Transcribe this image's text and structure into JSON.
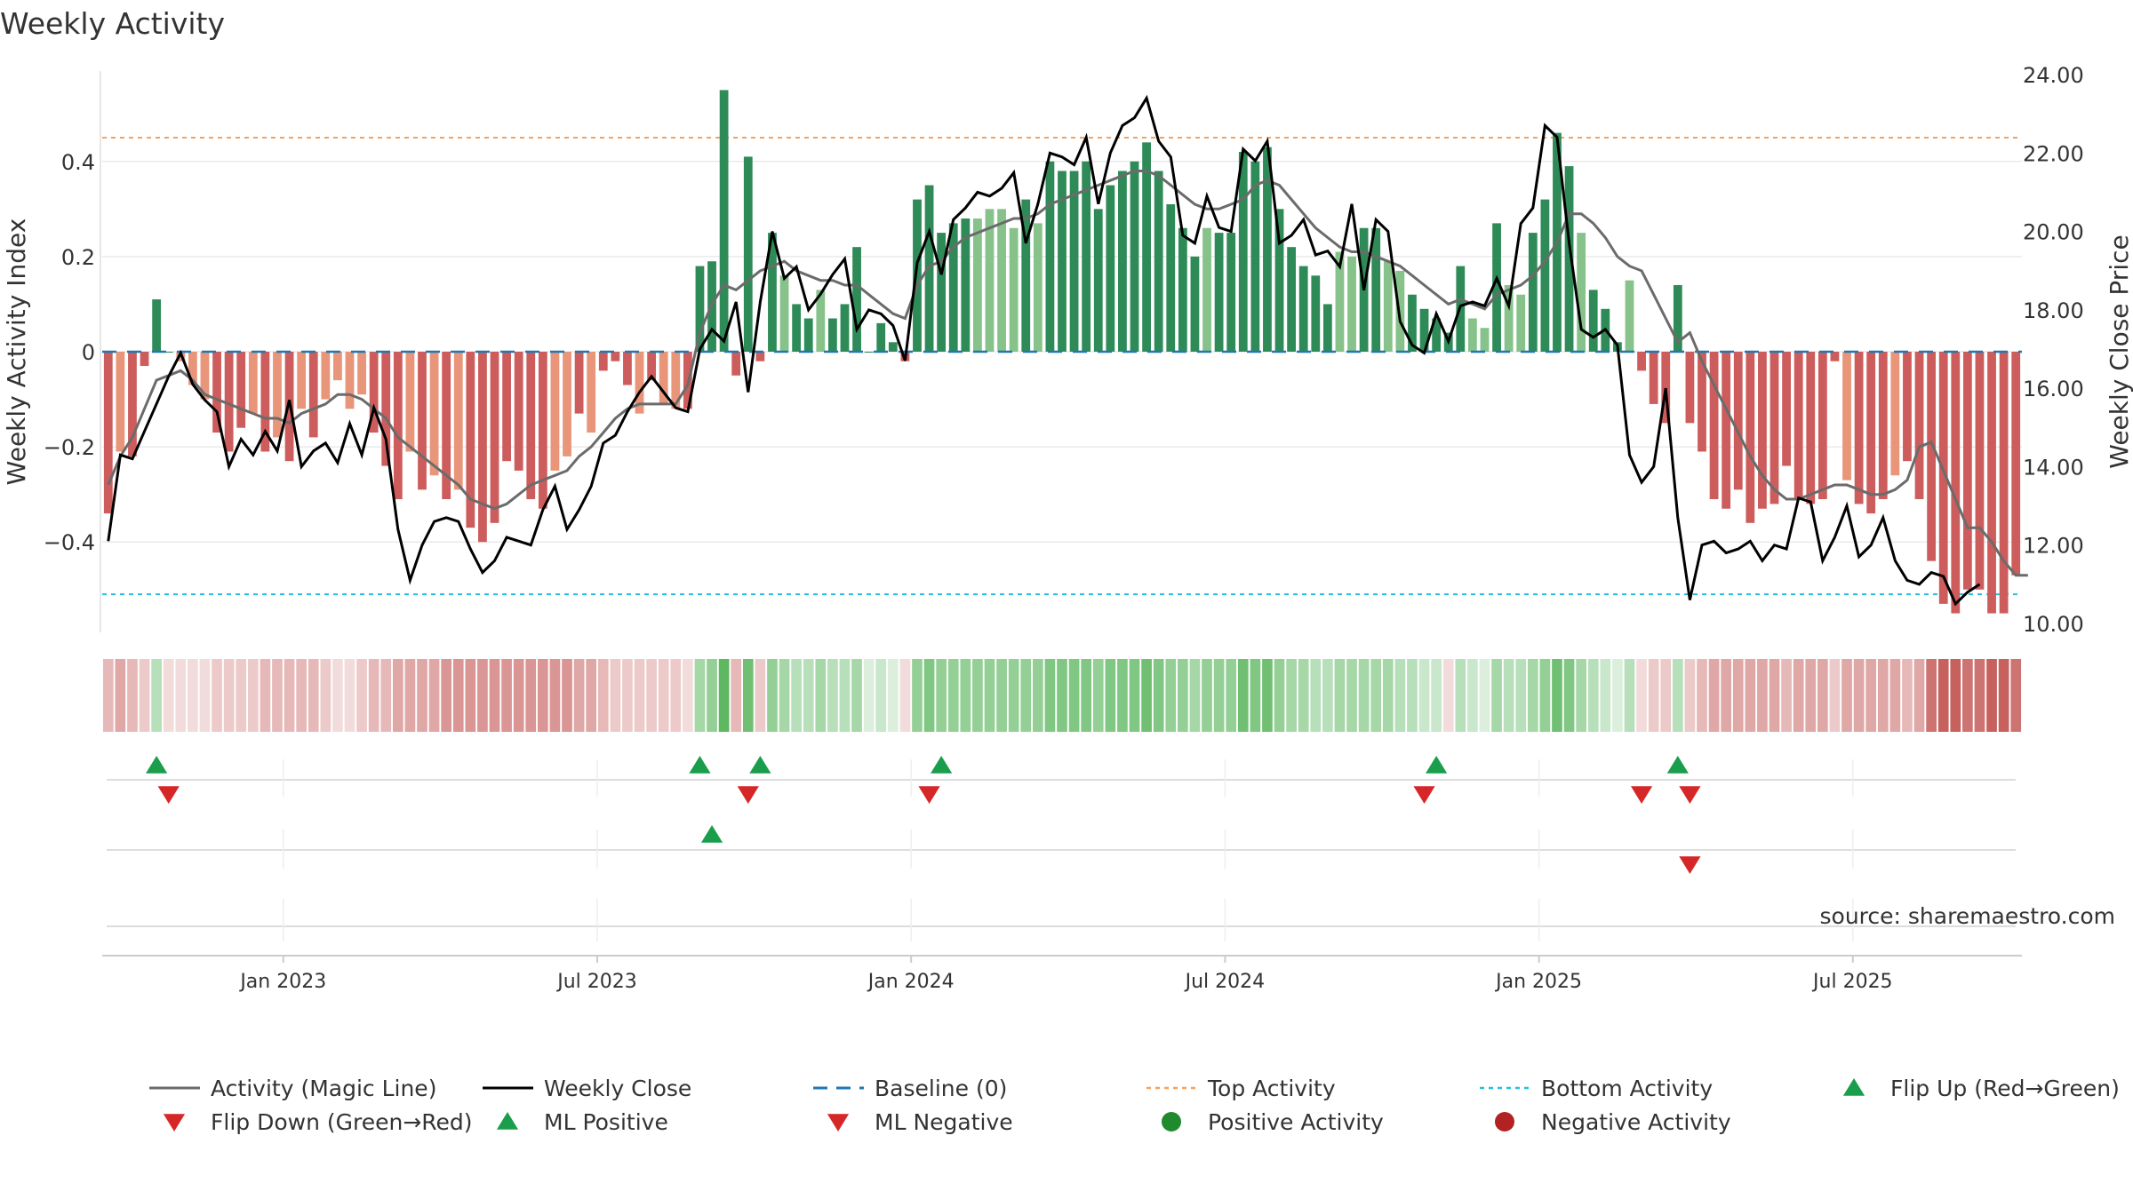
{
  "chart_data": {
    "type": "bar",
    "title": "Weekly Activity",
    "ylabel": "Weekly Activity Index",
    "y2label": "Weekly Close Price",
    "source": "source: sharemaestro.com",
    "ylim": [
      -0.59,
      0.59
    ],
    "y2lim": [
      10.0,
      24.0
    ],
    "yticks": [
      {
        "v": 0.4,
        "label": "0.4"
      },
      {
        "v": 0.2,
        "label": "0.2"
      },
      {
        "v": 0,
        "label": "0"
      },
      {
        "v": -0.2,
        "label": "−0.2"
      },
      {
        "v": -0.4,
        "label": "−0.4"
      }
    ],
    "y2ticks": [
      {
        "v": 24,
        "label": "24.00"
      },
      {
        "v": 22,
        "label": "22.00"
      },
      {
        "v": 20,
        "label": "20.00"
      },
      {
        "v": 18,
        "label": "18.00"
      },
      {
        "v": 16,
        "label": "16.00"
      },
      {
        "v": 14,
        "label": "14.00"
      },
      {
        "v": 12,
        "label": "12.00"
      },
      {
        "v": 10,
        "label": "10.00"
      }
    ],
    "xticks": [
      {
        "week": 14.5,
        "label": "Jan 2023"
      },
      {
        "week": 40.5,
        "label": "Jul 2023"
      },
      {
        "week": 66.5,
        "label": "Jan 2024"
      },
      {
        "week": 92.5,
        "label": "Jul 2024"
      },
      {
        "week": 118.5,
        "label": "Jan 2025"
      },
      {
        "week": 144.5,
        "label": "Jul 2025"
      }
    ],
    "top_activity": 0.45,
    "bottom_activity": -0.51,
    "activity": [
      -0.34,
      -0.21,
      -0.22,
      -0.03,
      0.11,
      0.0,
      -0.02,
      -0.07,
      -0.1,
      -0.17,
      -0.21,
      -0.16,
      -0.13,
      -0.21,
      -0.18,
      -0.23,
      -0.12,
      -0.18,
      -0.1,
      -0.06,
      -0.12,
      -0.09,
      -0.17,
      -0.24,
      -0.31,
      -0.21,
      -0.29,
      -0.26,
      -0.31,
      -0.29,
      -0.37,
      -0.4,
      -0.36,
      -0.23,
      -0.25,
      -0.31,
      -0.33,
      -0.25,
      -0.22,
      -0.13,
      -0.17,
      -0.04,
      -0.02,
      -0.07,
      -0.13,
      -0.06,
      -0.11,
      -0.12,
      -0.12,
      0.18,
      0.19,
      0.55,
      -0.05,
      0.41,
      -0.02,
      0.25,
      0.16,
      0.1,
      0.07,
      0.13,
      0.07,
      0.1,
      0.22,
      0.0,
      0.06,
      0.02,
      -0.02,
      0.32,
      0.35,
      0.25,
      0.27,
      0.28,
      0.28,
      0.3,
      0.3,
      0.26,
      0.32,
      0.27,
      0.4,
      0.38,
      0.38,
      0.4,
      0.3,
      0.35,
      0.38,
      0.4,
      0.44,
      0.38,
      0.31,
      0.26,
      0.2,
      0.26,
      0.25,
      0.25,
      0.42,
      0.4,
      0.43,
      0.3,
      0.22,
      0.18,
      0.16,
      0.1,
      0.21,
      0.2,
      0.26,
      0.26,
      0.19,
      0.17,
      0.12,
      0.09,
      0.07,
      0.04,
      0.18,
      0.07,
      0.05,
      0.27,
      0.14,
      0.12,
      0.25,
      0.32,
      0.46,
      0.39,
      0.25,
      0.13,
      0.09,
      0.02,
      0.15,
      -0.04,
      -0.11,
      -0.15,
      0.14,
      -0.15,
      -0.21,
      -0.31,
      -0.33,
      -0.29,
      -0.36,
      -0.33,
      -0.32,
      -0.24,
      -0.31,
      -0.32,
      -0.31,
      -0.02,
      -0.27,
      -0.32,
      -0.34,
      -0.31,
      -0.26,
      -0.23,
      -0.31,
      -0.44,
      -0.53,
      -0.55,
      -0.5,
      -0.5,
      -0.55,
      -0.55,
      -0.47
    ],
    "magic_line": [
      -0.28,
      -0.22,
      -0.18,
      -0.12,
      -0.06,
      -0.05,
      -0.04,
      -0.06,
      -0.09,
      -0.1,
      -0.11,
      -0.12,
      -0.13,
      -0.14,
      -0.14,
      -0.15,
      -0.13,
      -0.12,
      -0.11,
      -0.09,
      -0.09,
      -0.1,
      -0.12,
      -0.14,
      -0.18,
      -0.2,
      -0.22,
      -0.24,
      -0.26,
      -0.28,
      -0.31,
      -0.32,
      -0.33,
      -0.32,
      -0.3,
      -0.28,
      -0.27,
      -0.26,
      -0.25,
      -0.22,
      -0.2,
      -0.17,
      -0.14,
      -0.12,
      -0.11,
      -0.11,
      -0.11,
      -0.11,
      -0.07,
      0.04,
      0.1,
      0.14,
      0.13,
      0.15,
      0.17,
      0.18,
      0.19,
      0.17,
      0.16,
      0.15,
      0.15,
      0.14,
      0.14,
      0.12,
      0.1,
      0.08,
      0.07,
      0.14,
      0.18,
      0.19,
      0.22,
      0.24,
      0.25,
      0.26,
      0.27,
      0.28,
      0.28,
      0.29,
      0.31,
      0.32,
      0.33,
      0.34,
      0.35,
      0.36,
      0.37,
      0.38,
      0.38,
      0.37,
      0.35,
      0.33,
      0.31,
      0.3,
      0.3,
      0.31,
      0.32,
      0.35,
      0.36,
      0.35,
      0.32,
      0.29,
      0.26,
      0.24,
      0.22,
      0.21,
      0.21,
      0.2,
      0.19,
      0.18,
      0.16,
      0.14,
      0.12,
      0.1,
      0.11,
      0.1,
      0.09,
      0.12,
      0.13,
      0.14,
      0.16,
      0.19,
      0.23,
      0.29,
      0.29,
      0.27,
      0.24,
      0.2,
      0.18,
      0.17,
      0.12,
      0.07,
      0.02,
      0.04,
      -0.02,
      -0.07,
      -0.12,
      -0.17,
      -0.22,
      -0.26,
      -0.29,
      -0.31,
      -0.31,
      -0.3,
      -0.29,
      -0.28,
      -0.28,
      -0.29,
      -0.3,
      -0.3,
      -0.29,
      -0.27,
      -0.2,
      -0.19,
      -0.25,
      -0.31,
      -0.37,
      -0.37,
      -0.4,
      -0.44,
      -0.47,
      -0.47
    ],
    "weekly_close": [
      12.1,
      14.3,
      14.2,
      14.9,
      15.6,
      16.3,
      16.9,
      16.1,
      15.7,
      15.4,
      14.0,
      14.7,
      14.3,
      14.9,
      14.4,
      15.7,
      14.0,
      14.4,
      14.6,
      14.1,
      15.1,
      14.3,
      15.5,
      14.7,
      12.4,
      11.1,
      12.0,
      12.6,
      12.7,
      12.6,
      11.9,
      11.3,
      11.6,
      12.2,
      12.1,
      12.0,
      12.9,
      13.5,
      12.4,
      12.9,
      13.5,
      14.6,
      14.8,
      15.4,
      15.9,
      16.3,
      15.9,
      15.5,
      15.4,
      17.0,
      17.5,
      17.2,
      18.2,
      15.9,
      18.2,
      20.0,
      18.8,
      19.1,
      18.0,
      18.4,
      18.9,
      19.3,
      17.5,
      18.0,
      17.9,
      17.6,
      16.7,
      19.2,
      20.0,
      18.9,
      20.3,
      20.6,
      21.0,
      20.9,
      21.1,
      21.5,
      19.7,
      20.7,
      22.0,
      21.9,
      21.7,
      22.4,
      20.7,
      22.0,
      22.7,
      22.9,
      23.4,
      22.3,
      21.9,
      19.9,
      19.7,
      20.9,
      20.1,
      20.0,
      22.1,
      21.8,
      22.3,
      19.7,
      19.9,
      20.3,
      19.4,
      19.5,
      19.1,
      20.7,
      18.5,
      20.3,
      20.0,
      17.7,
      17.1,
      16.9,
      17.9,
      17.2,
      18.1,
      18.2,
      18.1,
      18.8,
      18.1,
      20.2,
      20.6,
      22.7,
      22.4,
      19.7,
      17.5,
      17.3,
      17.5,
      17.1,
      14.3,
      13.6,
      14.0,
      16.0,
      12.7,
      10.6,
      12.0,
      12.1,
      11.8,
      11.9,
      12.1,
      11.6,
      12.0,
      11.9,
      13.2,
      13.1,
      11.6,
      12.2,
      13.0,
      11.7,
      12.0,
      12.7,
      11.6,
      11.1,
      11.0,
      11.3,
      11.2,
      10.5,
      10.8,
      11.0
    ],
    "strip": [
      [
        0.4,
        "R"
      ],
      [
        0.5,
        "R"
      ],
      [
        0.4,
        "R"
      ],
      [
        0.3,
        "R"
      ],
      [
        0.4,
        "G"
      ],
      [
        0.2,
        "R"
      ],
      [
        0.2,
        "R"
      ],
      [
        0.2,
        "R"
      ],
      [
        0.2,
        "R"
      ],
      [
        0.3,
        "R"
      ],
      [
        0.3,
        "R"
      ],
      [
        0.3,
        "R"
      ],
      [
        0.3,
        "R"
      ],
      [
        0.4,
        "R"
      ],
      [
        0.4,
        "R"
      ],
      [
        0.4,
        "R"
      ],
      [
        0.4,
        "R"
      ],
      [
        0.4,
        "R"
      ],
      [
        0.3,
        "R"
      ],
      [
        0.2,
        "R"
      ],
      [
        0.2,
        "R"
      ],
      [
        0.3,
        "R"
      ],
      [
        0.4,
        "R"
      ],
      [
        0.4,
        "R"
      ],
      [
        0.5,
        "R"
      ],
      [
        0.5,
        "R"
      ],
      [
        0.5,
        "R"
      ],
      [
        0.5,
        "R"
      ],
      [
        0.6,
        "R"
      ],
      [
        0.6,
        "R"
      ],
      [
        0.6,
        "R"
      ],
      [
        0.6,
        "R"
      ],
      [
        0.6,
        "R"
      ],
      [
        0.6,
        "R"
      ],
      [
        0.6,
        "R"
      ],
      [
        0.6,
        "R"
      ],
      [
        0.6,
        "R"
      ],
      [
        0.6,
        "R"
      ],
      [
        0.6,
        "R"
      ],
      [
        0.5,
        "R"
      ],
      [
        0.5,
        "R"
      ],
      [
        0.4,
        "R"
      ],
      [
        0.3,
        "R"
      ],
      [
        0.3,
        "R"
      ],
      [
        0.3,
        "R"
      ],
      [
        0.3,
        "R"
      ],
      [
        0.3,
        "R"
      ],
      [
        0.3,
        "R"
      ],
      [
        0.2,
        "R"
      ],
      [
        0.5,
        "G"
      ],
      [
        0.6,
        "G"
      ],
      [
        0.9,
        "G"
      ],
      [
        0.4,
        "R"
      ],
      [
        0.8,
        "G"
      ],
      [
        0.3,
        "R"
      ],
      [
        0.6,
        "G"
      ],
      [
        0.5,
        "G"
      ],
      [
        0.4,
        "G"
      ],
      [
        0.4,
        "G"
      ],
      [
        0.5,
        "G"
      ],
      [
        0.4,
        "G"
      ],
      [
        0.4,
        "G"
      ],
      [
        0.5,
        "G"
      ],
      [
        0.2,
        "G"
      ],
      [
        0.3,
        "G"
      ],
      [
        0.2,
        "G"
      ],
      [
        0.2,
        "R"
      ],
      [
        0.6,
        "G"
      ],
      [
        0.7,
        "G"
      ],
      [
        0.6,
        "G"
      ],
      [
        0.6,
        "G"
      ],
      [
        0.6,
        "G"
      ],
      [
        0.6,
        "G"
      ],
      [
        0.6,
        "G"
      ],
      [
        0.6,
        "G"
      ],
      [
        0.6,
        "G"
      ],
      [
        0.6,
        "G"
      ],
      [
        0.6,
        "G"
      ],
      [
        0.7,
        "G"
      ],
      [
        0.7,
        "G"
      ],
      [
        0.7,
        "G"
      ],
      [
        0.7,
        "G"
      ],
      [
        0.6,
        "G"
      ],
      [
        0.7,
        "G"
      ],
      [
        0.7,
        "G"
      ],
      [
        0.7,
        "G"
      ],
      [
        0.8,
        "G"
      ],
      [
        0.7,
        "G"
      ],
      [
        0.6,
        "G"
      ],
      [
        0.6,
        "G"
      ],
      [
        0.5,
        "G"
      ],
      [
        0.6,
        "G"
      ],
      [
        0.6,
        "G"
      ],
      [
        0.6,
        "G"
      ],
      [
        0.8,
        "G"
      ],
      [
        0.7,
        "G"
      ],
      [
        0.8,
        "G"
      ],
      [
        0.6,
        "G"
      ],
      [
        0.5,
        "G"
      ],
      [
        0.5,
        "G"
      ],
      [
        0.4,
        "G"
      ],
      [
        0.4,
        "G"
      ],
      [
        0.5,
        "G"
      ],
      [
        0.5,
        "G"
      ],
      [
        0.5,
        "G"
      ],
      [
        0.5,
        "G"
      ],
      [
        0.5,
        "G"
      ],
      [
        0.4,
        "G"
      ],
      [
        0.4,
        "G"
      ],
      [
        0.3,
        "G"
      ],
      [
        0.3,
        "G"
      ],
      [
        0.2,
        "R"
      ],
      [
        0.4,
        "G"
      ],
      [
        0.3,
        "G"
      ],
      [
        0.2,
        "G"
      ],
      [
        0.5,
        "G"
      ],
      [
        0.4,
        "G"
      ],
      [
        0.4,
        "G"
      ],
      [
        0.5,
        "G"
      ],
      [
        0.6,
        "G"
      ],
      [
        0.8,
        "G"
      ],
      [
        0.7,
        "G"
      ],
      [
        0.5,
        "G"
      ],
      [
        0.4,
        "G"
      ],
      [
        0.3,
        "G"
      ],
      [
        0.2,
        "G"
      ],
      [
        0.4,
        "G"
      ],
      [
        0.2,
        "R"
      ],
      [
        0.3,
        "R"
      ],
      [
        0.3,
        "R"
      ],
      [
        0.4,
        "G"
      ],
      [
        0.3,
        "R"
      ],
      [
        0.4,
        "R"
      ],
      [
        0.5,
        "R"
      ],
      [
        0.5,
        "R"
      ],
      [
        0.5,
        "R"
      ],
      [
        0.5,
        "R"
      ],
      [
        0.5,
        "R"
      ],
      [
        0.5,
        "R"
      ],
      [
        0.4,
        "R"
      ],
      [
        0.5,
        "R"
      ],
      [
        0.5,
        "R"
      ],
      [
        0.5,
        "R"
      ],
      [
        0.3,
        "R"
      ],
      [
        0.5,
        "R"
      ],
      [
        0.5,
        "R"
      ],
      [
        0.5,
        "R"
      ],
      [
        0.5,
        "R"
      ],
      [
        0.5,
        "R"
      ],
      [
        0.4,
        "R"
      ],
      [
        0.5,
        "R"
      ],
      [
        0.8,
        "R"
      ],
      [
        0.9,
        "R"
      ],
      [
        0.9,
        "R"
      ],
      [
        0.8,
        "R"
      ],
      [
        0.8,
        "R"
      ],
      [
        0.9,
        "R"
      ],
      [
        0.9,
        "R"
      ],
      [
        0.8,
        "R"
      ]
    ],
    "flip_up_weeks": [
      4,
      49,
      54,
      69,
      110,
      130
    ],
    "flip_down_weeks": [
      5,
      53,
      68,
      109,
      127,
      131
    ],
    "ml_positive_weeks": [
      50
    ],
    "ml_negative_weeks": [
      131
    ],
    "legend": [
      {
        "label": "Activity (Magic Line)",
        "symbol": "line",
        "color": "#6b6b6b"
      },
      {
        "label": "Weekly Close",
        "symbol": "line",
        "color": "#000000"
      },
      {
        "label": "Baseline (0)",
        "symbol": "dash",
        "color": "#1f77b4"
      },
      {
        "label": "Top Activity",
        "symbol": "dot",
        "color": "#f4a261"
      },
      {
        "label": "Bottom Activity",
        "symbol": "dot",
        "color": "#22c1dd"
      },
      {
        "label": "Flip Up (Red→Green)",
        "symbol": "tri-up",
        "color": "#1a9e4b"
      },
      {
        "label": "Flip Down (Green→Red)",
        "symbol": "tri-down",
        "color": "#d62728"
      },
      {
        "label": "ML Positive",
        "symbol": "tri-up",
        "color": "#1a9e4b"
      },
      {
        "label": "ML Negative",
        "symbol": "tri-down",
        "color": "#d62728"
      },
      {
        "label": "Positive Activity",
        "symbol": "circle",
        "color": "#1f8a2e"
      },
      {
        "label": "Negative Activity",
        "symbol": "circle",
        "color": "#b22222"
      }
    ],
    "colors": {
      "pos_strong": "#2e8b57",
      "pos_light": "#86c28a",
      "neg_strong": "#cd5c5c",
      "neg_light": "#e8957a",
      "strip_green": "#4caf50",
      "strip_red": "#c0504d",
      "magic_line": "#6b6b6b",
      "close_line": "#000000",
      "baseline": "#1f77b4",
      "top_line": "#f4a261",
      "bottom_line": "#22c1dd",
      "grid": "#e6e6e6",
      "axis": "#cccccc",
      "source": "#999999"
    }
  }
}
